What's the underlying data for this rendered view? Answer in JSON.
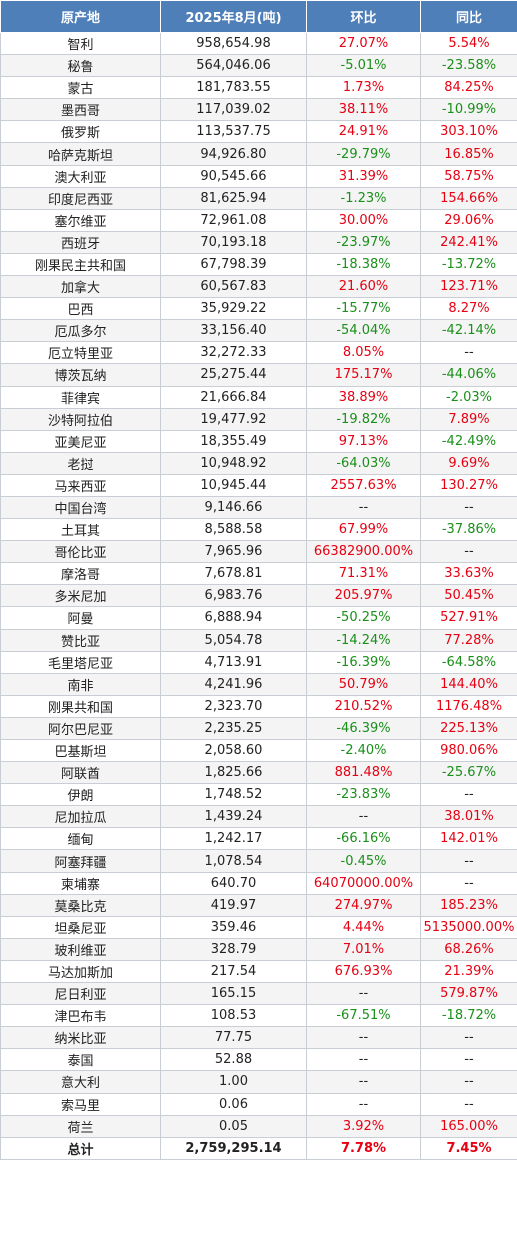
{
  "colors": {
    "header_bg": "#4f7fb9",
    "up": "#e60012",
    "down": "#1a8f1a"
  },
  "headers": [
    "原产地",
    "2025年8月(吨)",
    "环比",
    "同比"
  ],
  "rows": [
    [
      "智利",
      "958,654.98",
      "27.07%",
      "5.54%"
    ],
    [
      "秘鲁",
      "564,046.06",
      "-5.01%",
      "-23.58%"
    ],
    [
      "蒙古",
      "181,783.55",
      "1.73%",
      "84.25%"
    ],
    [
      "墨西哥",
      "117,039.02",
      "38.11%",
      "-10.99%"
    ],
    [
      "俄罗斯",
      "113,537.75",
      "24.91%",
      "303.10%"
    ],
    [
      "哈萨克斯坦",
      "94,926.80",
      "-29.79%",
      "16.85%"
    ],
    [
      "澳大利亚",
      "90,545.66",
      "31.39%",
      "58.75%"
    ],
    [
      "印度尼西亚",
      "81,625.94",
      "-1.23%",
      "154.66%"
    ],
    [
      "塞尔维亚",
      "72,961.08",
      "30.00%",
      "29.06%"
    ],
    [
      "西班牙",
      "70,193.18",
      "-23.97%",
      "242.41%"
    ],
    [
      "刚果民主共和国",
      "67,798.39",
      "-18.38%",
      "-13.72%"
    ],
    [
      "加拿大",
      "60,567.83",
      "21.60%",
      "123.71%"
    ],
    [
      "巴西",
      "35,929.22",
      "-15.77%",
      "8.27%"
    ],
    [
      "厄瓜多尔",
      "33,156.40",
      "-54.04%",
      "-42.14%"
    ],
    [
      "厄立特里亚",
      "32,272.33",
      "8.05%",
      "--"
    ],
    [
      "博茨瓦纳",
      "25,275.44",
      "175.17%",
      "-44.06%"
    ],
    [
      "菲律宾",
      "21,666.84",
      "38.89%",
      "-2.03%"
    ],
    [
      "沙特阿拉伯",
      "19,477.92",
      "-19.82%",
      "7.89%"
    ],
    [
      "亚美尼亚",
      "18,355.49",
      "97.13%",
      "-42.49%"
    ],
    [
      "老挝",
      "10,948.92",
      "-64.03%",
      "9.69%"
    ],
    [
      "马来西亚",
      "10,945.44",
      "2557.63%",
      "130.27%"
    ],
    [
      "中国台湾",
      "9,146.66",
      "--",
      "--"
    ],
    [
      "土耳其",
      "8,588.58",
      "67.99%",
      "-37.86%"
    ],
    [
      "哥伦比亚",
      "7,965.96",
      "66382900.00%",
      "--"
    ],
    [
      "摩洛哥",
      "7,678.81",
      "71.31%",
      "33.63%"
    ],
    [
      "多米尼加",
      "6,983.76",
      "205.97%",
      "50.45%"
    ],
    [
      "阿曼",
      "6,888.94",
      "-50.25%",
      "527.91%"
    ],
    [
      "赞比亚",
      "5,054.78",
      "-14.24%",
      "77.28%"
    ],
    [
      "毛里塔尼亚",
      "4,713.91",
      "-16.39%",
      "-64.58%"
    ],
    [
      "南非",
      "4,241.96",
      "50.79%",
      "144.40%"
    ],
    [
      "刚果共和国",
      "2,323.70",
      "210.52%",
      "1176.48%"
    ],
    [
      "阿尔巴尼亚",
      "2,235.25",
      "-46.39%",
      "225.13%"
    ],
    [
      "巴基斯坦",
      "2,058.60",
      "-2.40%",
      "980.06%"
    ],
    [
      "阿联酋",
      "1,825.66",
      "881.48%",
      "-25.67%"
    ],
    [
      "伊朗",
      "1,748.52",
      "-23.83%",
      "--"
    ],
    [
      "尼加拉瓜",
      "1,439.24",
      "--",
      "38.01%"
    ],
    [
      "缅甸",
      "1,242.17",
      "-66.16%",
      "142.01%"
    ],
    [
      "阿塞拜疆",
      "1,078.54",
      "-0.45%",
      "--"
    ],
    [
      "柬埔寨",
      "640.70",
      "64070000.00%",
      "--"
    ],
    [
      "莫桑比克",
      "419.97",
      "274.97%",
      "185.23%"
    ],
    [
      "坦桑尼亚",
      "359.46",
      "4.44%",
      "5135000.00%"
    ],
    [
      "玻利维亚",
      "328.79",
      "7.01%",
      "68.26%"
    ],
    [
      "马达加斯加",
      "217.54",
      "676.93%",
      "21.39%"
    ],
    [
      "尼日利亚",
      "165.15",
      "--",
      "579.87%"
    ],
    [
      "津巴布韦",
      "108.53",
      "-67.51%",
      "-18.72%"
    ],
    [
      "纳米比亚",
      "77.75",
      "--",
      "--"
    ],
    [
      "泰国",
      "52.88",
      "--",
      "--"
    ],
    [
      "意大利",
      "1.00",
      "--",
      "--"
    ],
    [
      "索马里",
      "0.06",
      "--",
      "--"
    ],
    [
      "荷兰",
      "0.05",
      "3.92%",
      "165.00%"
    ]
  ],
  "total": [
    "总计",
    "2,759,295.14",
    "7.78%",
    "7.45%"
  ]
}
